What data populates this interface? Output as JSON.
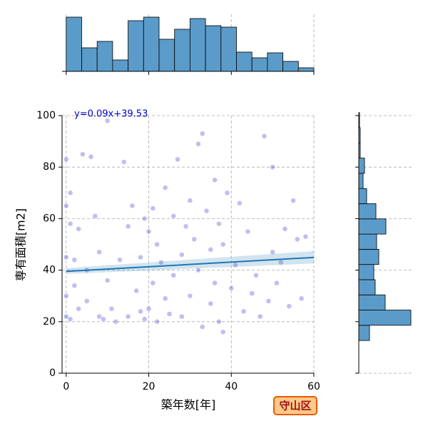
{
  "chart_data": {
    "type": "joint-scatter",
    "xlabel": "築年数[年]",
    "ylabel": "専有面積[m2]",
    "annotation": "y=0.09x+39.53",
    "badge": "守山区",
    "xlim": [
      -1,
      60
    ],
    "xticks": [
      0,
      20,
      40,
      60
    ],
    "ylim": [
      0,
      100
    ],
    "yticks": [
      0,
      20,
      40,
      60,
      80,
      100
    ],
    "grid": true,
    "point_color": "#2b2bd0",
    "line_color": "#1f77b4",
    "hist_color": "#5b9bc9",
    "x": [
      0,
      0,
      0,
      0,
      0,
      1,
      1,
      1,
      2,
      2,
      3,
      3,
      4,
      5,
      5,
      6,
      7,
      8,
      8,
      9,
      10,
      10,
      11,
      12,
      13,
      14,
      15,
      15,
      16,
      17,
      18,
      18,
      19,
      19,
      20,
      20,
      21,
      21,
      22,
      22,
      23,
      24,
      24,
      25,
      26,
      26,
      27,
      28,
      28,
      29,
      30,
      30,
      31,
      32,
      32,
      33,
      33,
      34,
      35,
      35,
      36,
      36,
      37,
      37,
      38,
      38,
      39,
      40,
      41,
      42,
      43,
      44,
      45,
      46,
      47,
      48,
      49,
      50,
      50,
      51,
      52,
      53,
      54,
      55,
      56,
      57,
      58
    ],
    "y": [
      83,
      65,
      30,
      22,
      45,
      58,
      21,
      70,
      44,
      34,
      25,
      56,
      85,
      40,
      28,
      84,
      61,
      22,
      47,
      21,
      98,
      36,
      25,
      20,
      44,
      82,
      57,
      22,
      65,
      32,
      24,
      45,
      60,
      21,
      55,
      25,
      64,
      35,
      20,
      50,
      43,
      29,
      72,
      23,
      61,
      38,
      83,
      46,
      22,
      57,
      30,
      67,
      52,
      40,
      89,
      93,
      18,
      63,
      27,
      48,
      35,
      75,
      20,
      58,
      16,
      50,
      70,
      33,
      42,
      66,
      24,
      55,
      31,
      38,
      22,
      92,
      28,
      47,
      80,
      35,
      43,
      56,
      26,
      67,
      52,
      29,
      53
    ],
    "fit_x": [
      0,
      60
    ],
    "fit_y": [
      39.53,
      44.93
    ],
    "band_lower": [
      38.5,
      42.6
    ],
    "band_upper": [
      40.8,
      47.4
    ],
    "top_hist": {
      "bins": [
        0,
        3.75,
        7.5,
        11.25,
        15,
        18.75,
        22.5,
        26.25,
        30,
        33.75,
        37.5,
        41.25,
        45,
        48.75,
        52.5,
        56.25,
        60
      ],
      "counts": [
        76,
        33,
        42,
        16,
        71,
        76,
        45,
        59,
        74,
        64,
        62,
        27,
        19,
        26,
        14,
        5
      ],
      "lim": [
        0,
        80
      ]
    },
    "right_hist": {
      "bins": [
        12.7,
        18.6,
        24.5,
        30.4,
        36.3,
        42.2,
        48.1,
        54,
        59.9,
        65.8,
        71.7,
        77.6,
        83.5,
        89.4,
        95.3,
        101.2
      ],
      "counts": [
        15,
        73,
        37,
        23,
        21,
        28,
        25,
        38,
        24,
        11,
        6,
        8,
        2,
        2,
        1
      ],
      "lim": [
        0,
        77
      ]
    }
  }
}
